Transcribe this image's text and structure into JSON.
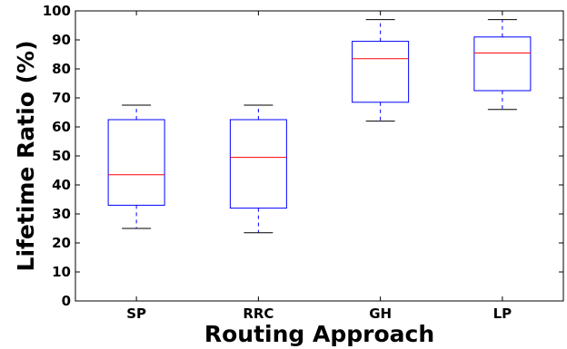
{
  "chart_data": {
    "type": "box",
    "xlabel": "Routing Approach",
    "ylabel": "Lifetime Ratio (%)",
    "ylim": [
      0,
      100
    ],
    "yticks": [
      0,
      10,
      20,
      30,
      40,
      50,
      60,
      70,
      80,
      90,
      100
    ],
    "grid": false,
    "categories": [
      "SP",
      "RRC",
      "GH",
      "LP"
    ],
    "boxes": [
      {
        "category": "SP",
        "whisker_low": 25,
        "q1": 33,
        "median": 43.5,
        "q3": 62.5,
        "whisker_high": 67.5
      },
      {
        "category": "RRC",
        "whisker_low": 23.5,
        "q1": 32,
        "median": 49.5,
        "q3": 62.5,
        "whisker_high": 67.5
      },
      {
        "category": "GH",
        "whisker_low": 62,
        "q1": 68.5,
        "median": 83.5,
        "q3": 89.5,
        "whisker_high": 97
      },
      {
        "category": "LP",
        "whisker_low": 66,
        "q1": 72.5,
        "median": 85.5,
        "q3": 91,
        "whisker_high": 97
      }
    ],
    "colors": {
      "box": "#0000ff",
      "median": "#ff0000",
      "whisker": "#0000ff",
      "cap": "#000000"
    }
  }
}
